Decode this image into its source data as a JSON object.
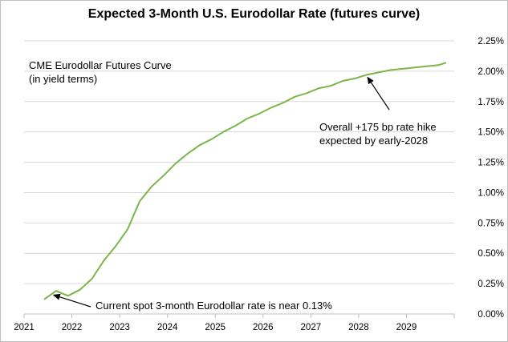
{
  "chart_data": {
    "type": "line",
    "title": "Expected 3-Month U.S. Eurodollar Rate (futures curve)",
    "xlabel": "",
    "ylabel": "",
    "xlim": [
      2021,
      2030
    ],
    "ylim": [
      0,
      2.25
    ],
    "x_ticks": [
      "2021",
      "2022",
      "2023",
      "2024",
      "2025",
      "2026",
      "2027",
      "2028",
      "2029"
    ],
    "y_ticks": [
      "0.00%",
      "0.25%",
      "0.50%",
      "0.75%",
      "1.00%",
      "1.25%",
      "1.50%",
      "1.75%",
      "2.00%",
      "2.25%"
    ],
    "y_axis_side": "right",
    "grid": "horizontal",
    "legend": "none",
    "series": [
      {
        "color": "#7ab648",
        "x": [
          2021.42,
          2021.67,
          2021.92,
          2022.17,
          2022.42,
          2022.67,
          2022.92,
          2023.17,
          2023.42,
          2023.67,
          2023.92,
          2024.17,
          2024.42,
          2024.67,
          2024.92,
          2025.17,
          2025.42,
          2025.67,
          2025.92,
          2026.17,
          2026.42,
          2026.67,
          2026.92,
          2027.17,
          2027.42,
          2027.67,
          2027.92,
          2028.17,
          2028.42,
          2028.67,
          2028.92,
          2029.17,
          2029.42,
          2029.67,
          2029.83
        ],
        "y": [
          0.12,
          0.19,
          0.15,
          0.2,
          0.29,
          0.44,
          0.56,
          0.7,
          0.93,
          1.05,
          1.14,
          1.24,
          1.32,
          1.39,
          1.44,
          1.5,
          1.55,
          1.61,
          1.65,
          1.7,
          1.74,
          1.79,
          1.82,
          1.86,
          1.88,
          1.92,
          1.94,
          1.97,
          1.99,
          2.01,
          2.02,
          2.03,
          2.04,
          2.05,
          2.07
        ]
      }
    ],
    "annotations": [
      {
        "id": "curve_label",
        "lines": [
          "CME Eurodollar Futures Curve",
          "(in yield terms)"
        ]
      },
      {
        "id": "hike_note",
        "lines": [
          "Overall +175 bp rate hike",
          "expected by early-2028"
        ],
        "arrow_to": [
          2028.17,
          1.97
        ]
      },
      {
        "id": "spot_note",
        "lines": [
          "Current spot 3-month  Eurodollar rate is near 0.13%"
        ],
        "arrow_to": [
          2021.5,
          0.13
        ]
      }
    ]
  }
}
